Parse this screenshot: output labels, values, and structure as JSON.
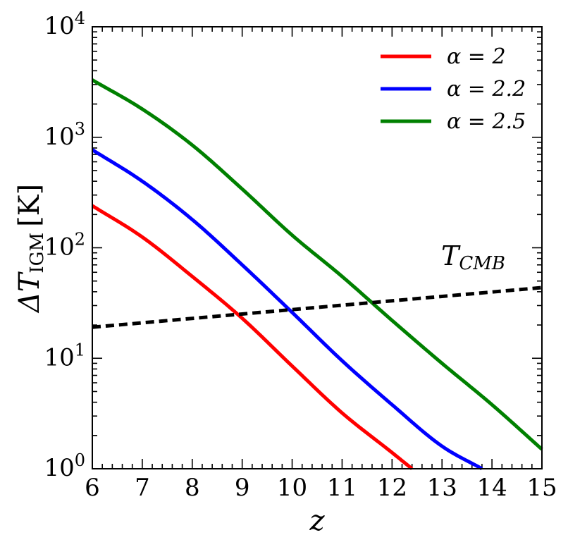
{
  "chart_data": {
    "type": "line",
    "xlabel": "z",
    "ylabel_delta": "ΔT",
    "ylabel_sub": "IGM",
    "ylabel_unit": "[K]",
    "xlim": [
      6,
      15
    ],
    "ylim": [
      1,
      10000
    ],
    "yscale": "log",
    "x_ticks": [
      "6",
      "7",
      "8",
      "9",
      "10",
      "11",
      "12",
      "13",
      "14",
      "15"
    ],
    "y_ticks": [
      {
        "base": "10",
        "exp": "0"
      },
      {
        "base": "10",
        "exp": "1"
      },
      {
        "base": "10",
        "exp": "2"
      },
      {
        "base": "10",
        "exp": "3"
      },
      {
        "base": "10",
        "exp": "4"
      }
    ],
    "legend_position": "top-right",
    "grid": false,
    "series": [
      {
        "name": "α = 2",
        "color": "#ff0000",
        "style": "solid",
        "x": [
          6,
          7,
          8,
          9,
          10,
          11,
          12,
          12.4
        ],
        "y": [
          240,
          125,
          55,
          23,
          8.5,
          3.2,
          1.4,
          1.0
        ]
      },
      {
        "name": "α = 2.2",
        "color": "#0000ff",
        "style": "solid",
        "x": [
          6,
          7,
          8,
          9,
          10,
          11,
          12,
          13,
          13.8
        ],
        "y": [
          770,
          400,
          180,
          70,
          26,
          9.5,
          3.8,
          1.6,
          1.0
        ]
      },
      {
        "name": "α = 2.5",
        "color": "#008000",
        "style": "solid",
        "x": [
          6,
          7,
          8,
          9,
          10,
          11,
          12,
          13,
          14,
          15
        ],
        "y": [
          3300,
          1800,
          850,
          340,
          130,
          55,
          22,
          9,
          3.8,
          1.5
        ]
      },
      {
        "name": "T_CMB",
        "color": "#000000",
        "style": "dashed",
        "x": [
          6,
          15
        ],
        "y": [
          19.1,
          43.6
        ]
      }
    ],
    "annotation": {
      "main": "T",
      "sub": "CMB"
    }
  }
}
